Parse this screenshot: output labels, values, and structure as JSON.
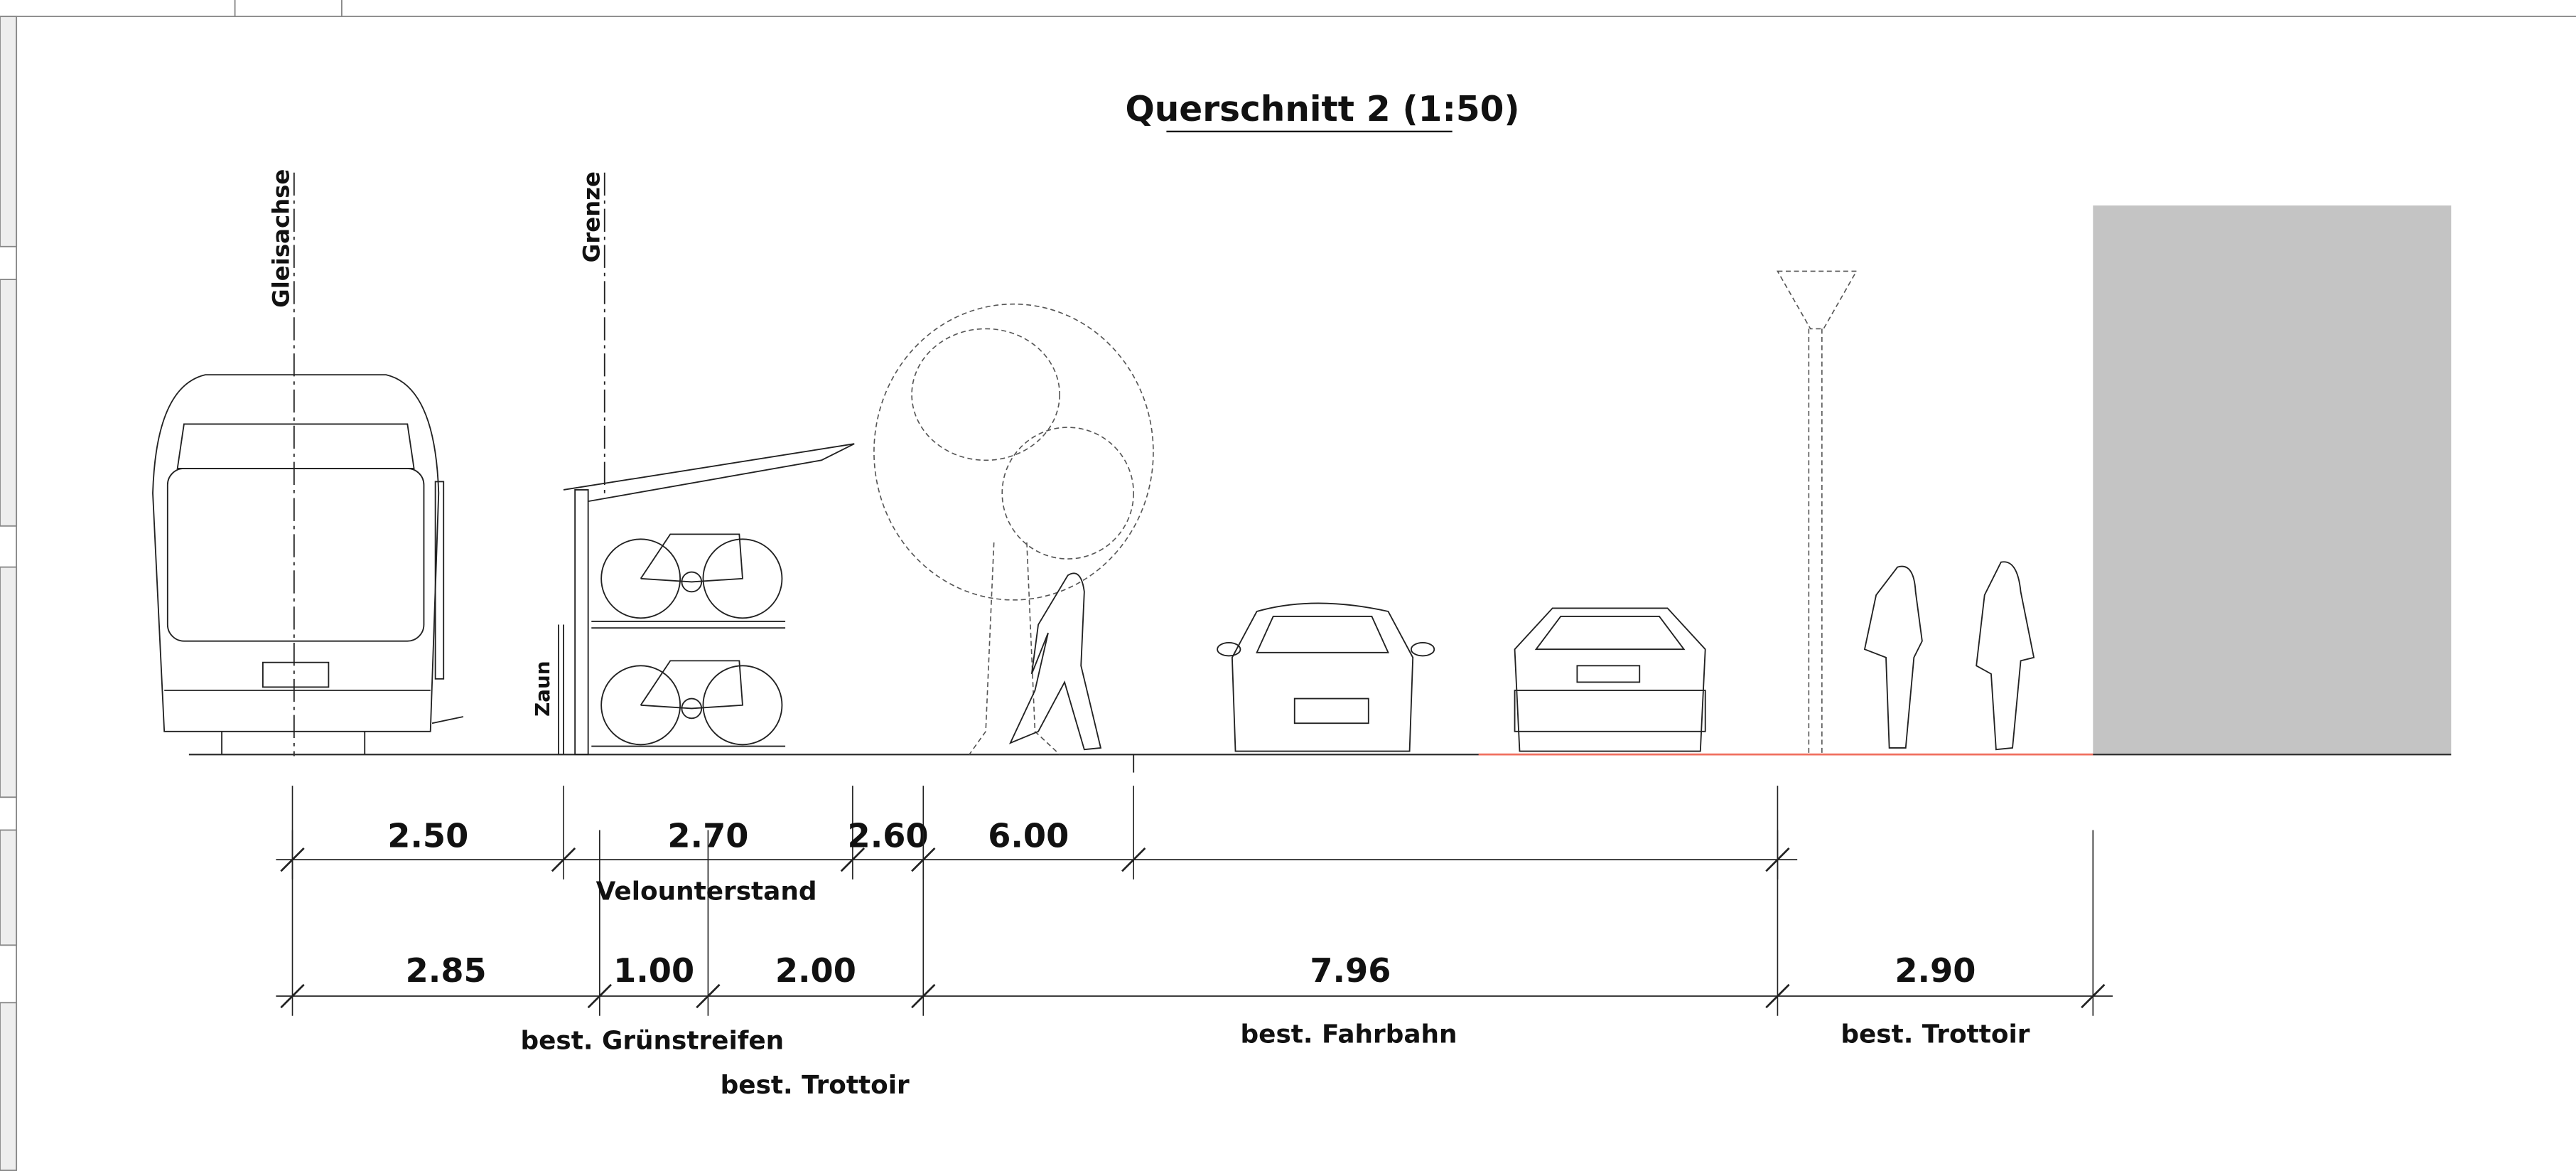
{
  "title": "Querschnitt 2 (1:50)",
  "axis_labels": [
    "Gleisachse",
    "Grenze",
    "Zaun"
  ],
  "upper_dimensions": [
    "2.50",
    "2.70",
    "2.60",
    "6.00"
  ],
  "upper_labels": [
    "Velounterstand"
  ],
  "lower_dimensions": [
    "2.85",
    "1.00",
    "2.00",
    "7.96",
    "2.90"
  ],
  "lower_labels": [
    "best. Grünstreifen",
    "best. Trottoir",
    "best. Fahrbahn",
    "best. Trottoir"
  ]
}
